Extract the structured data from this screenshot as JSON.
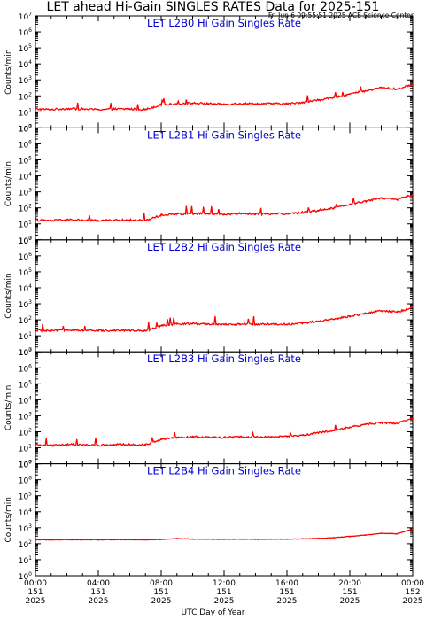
{
  "header": {
    "title": "LET ahead Hi-Gain SINGLES RATES Data for 2025-151",
    "timestamp": "Fri Jun  6 09:55:51 2025 ACE Science Center"
  },
  "colors": {
    "trace": "#ff0000",
    "panel_title": "#0000cc",
    "axes": "#000000"
  },
  "chart_data": [
    {
      "type": "line",
      "title": "LET L2B0 Hi Gain Singles Rate",
      "ylabel": "Counts/min",
      "yscale": "log",
      "ylim": [
        1,
        10000000
      ],
      "xlim": [
        0,
        24
      ],
      "series": [
        {
          "x": [
            0,
            1,
            2,
            3,
            4,
            5,
            6,
            7,
            8,
            9,
            10,
            11,
            12,
            13,
            14,
            15,
            16,
            17,
            18,
            19,
            20,
            21,
            22,
            23,
            24
          ],
          "values": [
            15,
            14,
            16,
            15,
            14,
            15,
            15,
            14,
            28,
            32,
            35,
            33,
            30,
            34,
            32,
            33,
            32,
            40,
            55,
            80,
            130,
            200,
            330,
            260,
            520
          ]
        }
      ]
    },
    {
      "type": "line",
      "title": "LET L2B1 Hi Gain Singles Rate",
      "ylabel": "Counts/min",
      "yscale": "log",
      "ylim": [
        1,
        10000000
      ],
      "xlim": [
        0,
        24
      ],
      "series": [
        {
          "x": [
            0,
            1,
            2,
            3,
            4,
            5,
            6,
            7,
            8,
            9,
            10,
            11,
            12,
            13,
            14,
            15,
            16,
            17,
            18,
            19,
            20,
            21,
            22,
            23,
            24
          ],
          "values": [
            17,
            16,
            18,
            17,
            16,
            17,
            17,
            16,
            35,
            42,
            45,
            42,
            40,
            44,
            42,
            43,
            42,
            52,
            70,
            100,
            170,
            260,
            420,
            330,
            650
          ]
        }
      ]
    },
    {
      "type": "line",
      "title": "LET L2B2 Hi Gain Singles Rate",
      "ylabel": "Counts/min",
      "yscale": "log",
      "ylim": [
        1,
        10000000
      ],
      "xlim": [
        0,
        24
      ],
      "series": [
        {
          "x": [
            0,
            1,
            2,
            3,
            4,
            5,
            6,
            7,
            8,
            9,
            10,
            11,
            12,
            13,
            14,
            15,
            16,
            17,
            18,
            19,
            20,
            21,
            22,
            23,
            24
          ],
          "values": [
            22,
            20,
            24,
            22,
            21,
            22,
            22,
            21,
            42,
            55,
            58,
            55,
            50,
            55,
            52,
            54,
            52,
            62,
            80,
            110,
            170,
            250,
            360,
            310,
            580
          ]
        }
      ]
    },
    {
      "type": "line",
      "title": "LET L2B3 Hi Gain Singles Rate",
      "ylabel": "Counts/min",
      "yscale": "log",
      "ylim": [
        1,
        10000000
      ],
      "xlim": [
        0,
        24
      ],
      "series": [
        {
          "x": [
            0,
            1,
            2,
            3,
            4,
            5,
            6,
            7,
            8,
            9,
            10,
            11,
            12,
            13,
            14,
            15,
            16,
            17,
            18,
            19,
            20,
            21,
            22,
            23,
            24
          ],
          "values": [
            15,
            14,
            16,
            15,
            14,
            16,
            16,
            15,
            33,
            45,
            48,
            46,
            44,
            48,
            46,
            48,
            50,
            62,
            85,
            120,
            190,
            290,
            380,
            330,
            700
          ]
        }
      ]
    },
    {
      "type": "line",
      "title": "LET L2B4 Hi Gain Singles Rate",
      "ylabel": "Counts/min",
      "yscale": "log",
      "ylim": [
        1,
        10000000
      ],
      "xlim": [
        0,
        24
      ],
      "series": [
        {
          "x": [
            0,
            1,
            2,
            3,
            4,
            5,
            6,
            7,
            8,
            9,
            10,
            11,
            12,
            13,
            14,
            15,
            16,
            17,
            18,
            19,
            20,
            21,
            22,
            23,
            24
          ],
          "values": [
            175,
            175,
            178,
            176,
            175,
            177,
            177,
            176,
            185,
            210,
            195,
            192,
            190,
            192,
            190,
            192,
            195,
            200,
            215,
            240,
            290,
            350,
            450,
            420,
            850
          ]
        }
      ]
    }
  ],
  "x_axis": {
    "label": "UTC Day of Year",
    "ticks": [
      {
        "x": 0,
        "time": "00:00",
        "day": "151",
        "year": "2025"
      },
      {
        "x": 4,
        "time": "04:00",
        "day": "151",
        "year": "2025"
      },
      {
        "x": 8,
        "time": "08:00",
        "day": "151",
        "year": "2025"
      },
      {
        "x": 12,
        "time": "12:00",
        "day": "151",
        "year": "2025"
      },
      {
        "x": 16,
        "time": "16:00",
        "day": "151",
        "year": "2025"
      },
      {
        "x": 20,
        "time": "20:00",
        "day": "151",
        "year": "2025"
      },
      {
        "x": 24,
        "time": "00:00",
        "day": "152",
        "year": "2025"
      }
    ]
  },
  "y_axis": {
    "ticks": [
      {
        "base": "10",
        "exp": "0"
      },
      {
        "base": "10",
        "exp": "1"
      },
      {
        "base": "10",
        "exp": "2"
      },
      {
        "base": "10",
        "exp": "3"
      },
      {
        "base": "10",
        "exp": "4"
      },
      {
        "base": "10",
        "exp": "5"
      },
      {
        "base": "10",
        "exp": "6"
      },
      {
        "base": "10",
        "exp": "7"
      }
    ]
  }
}
